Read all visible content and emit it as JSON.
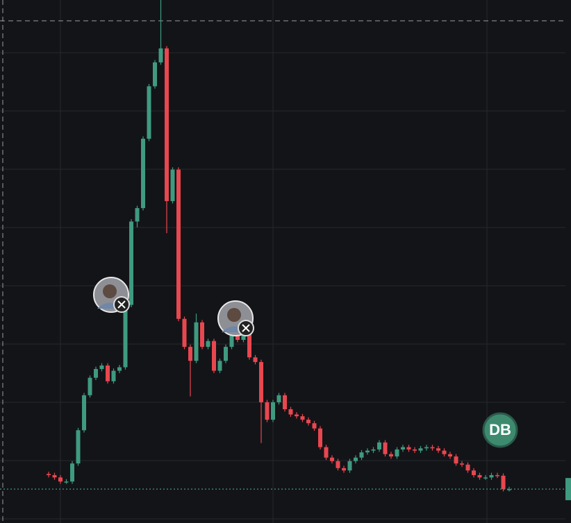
{
  "chart_data": {
    "type": "candlestick",
    "colors": {
      "up": "#3f9a80",
      "down": "#e8474f"
    },
    "ylim": [
      0,
      8.9
    ],
    "open": [
      0.77,
      0.75,
      0.71,
      0.64,
      0.64,
      0.95,
      1.52,
      2.12,
      2.42,
      2.57,
      2.63,
      2.36,
      2.54,
      2.6,
      3.67,
      5.1,
      5.33,
      6.52,
      7.42,
      7.83,
      8.07,
      5.45,
      5.99,
      3.43,
      2.95,
      2.71,
      3.37,
      2.95,
      3.05,
      2.54,
      2.71,
      2.95,
      3.43,
      3.07,
      3.25,
      2.77,
      2.69,
      2.0,
      1.7,
      2.0,
      2.12,
      1.88,
      1.79,
      1.76,
      1.7,
      1.64,
      1.55,
      1.23,
      1.05,
      0.99,
      0.87,
      0.83,
      0.99,
      1.05,
      1.14,
      1.17,
      1.19,
      1.31,
      1.11,
      1.07,
      1.19,
      1.23,
      1.19,
      1.17,
      1.21,
      1.23,
      1.21,
      1.17,
      1.11,
      1.07,
      0.95,
      0.93,
      0.83,
      0.75,
      0.71,
      0.71,
      0.75,
      0.74,
      0.51
    ],
    "high": [
      0.81,
      0.79,
      0.75,
      0.68,
      0.99,
      1.56,
      2.16,
      2.46,
      2.61,
      2.67,
      2.67,
      2.58,
      2.64,
      3.71,
      5.14,
      5.37,
      6.56,
      7.46,
      7.87,
      8.9,
      8.11,
      6.03,
      6.03,
      3.47,
      2.99,
      3.52,
      3.41,
      3.09,
      3.09,
      2.75,
      2.99,
      3.47,
      3.47,
      3.4,
      3.29,
      2.81,
      2.73,
      2.04,
      2.04,
      2.16,
      2.16,
      1.92,
      1.83,
      1.8,
      1.74,
      1.68,
      1.59,
      1.27,
      1.09,
      1.03,
      0.91,
      1.03,
      1.09,
      1.18,
      1.21,
      1.23,
      1.35,
      1.35,
      1.15,
      1.23,
      1.27,
      1.27,
      1.23,
      1.25,
      1.27,
      1.27,
      1.25,
      1.21,
      1.15,
      1.11,
      0.99,
      0.97,
      0.87,
      0.79,
      0.75,
      0.79,
      0.79,
      0.78,
      0.55
    ],
    "low": [
      0.71,
      0.67,
      0.6,
      0.6,
      0.6,
      0.91,
      1.48,
      2.08,
      2.38,
      2.53,
      2.32,
      2.32,
      2.5,
      2.56,
      3.63,
      5.0,
      5.29,
      6.48,
      7.38,
      7.79,
      4.9,
      5.41,
      3.39,
      2.91,
      2.1,
      2.67,
      2.91,
      2.91,
      2.5,
      2.5,
      2.67,
      2.91,
      3.03,
      3.03,
      2.73,
      2.65,
      1.3,
      1.66,
      1.66,
      1.96,
      1.84,
      1.75,
      1.72,
      1.66,
      1.6,
      1.51,
      1.19,
      1.01,
      0.95,
      0.83,
      0.79,
      0.79,
      0.95,
      1.01,
      1.1,
      1.13,
      1.15,
      1.07,
      1.03,
      1.03,
      1.15,
      1.15,
      1.13,
      1.13,
      1.17,
      1.17,
      1.13,
      1.07,
      1.03,
      0.91,
      0.89,
      0.79,
      0.71,
      0.67,
      0.67,
      0.67,
      0.7,
      0.47,
      0.47
    ],
    "close": [
      0.75,
      0.71,
      0.64,
      0.64,
      0.95,
      1.52,
      2.12,
      2.42,
      2.57,
      2.63,
      2.36,
      2.54,
      2.6,
      3.67,
      5.1,
      5.33,
      6.52,
      7.42,
      7.83,
      8.07,
      5.45,
      5.99,
      3.43,
      2.95,
      2.71,
      3.37,
      2.95,
      3.05,
      2.54,
      2.71,
      2.95,
      3.43,
      3.07,
      3.25,
      2.77,
      2.69,
      2.0,
      1.7,
      2.0,
      2.12,
      1.88,
      1.79,
      1.76,
      1.7,
      1.64,
      1.55,
      1.23,
      1.05,
      0.99,
      0.87,
      0.83,
      0.99,
      1.05,
      1.14,
      1.17,
      1.19,
      1.31,
      1.11,
      1.07,
      1.19,
      1.23,
      1.19,
      1.17,
      1.21,
      1.23,
      1.21,
      1.17,
      1.11,
      1.07,
      0.95,
      0.93,
      0.83,
      0.75,
      0.71,
      0.71,
      0.75,
      0.74,
      0.51,
      0.51
    ],
    "marker": {
      "label": "DB"
    }
  }
}
